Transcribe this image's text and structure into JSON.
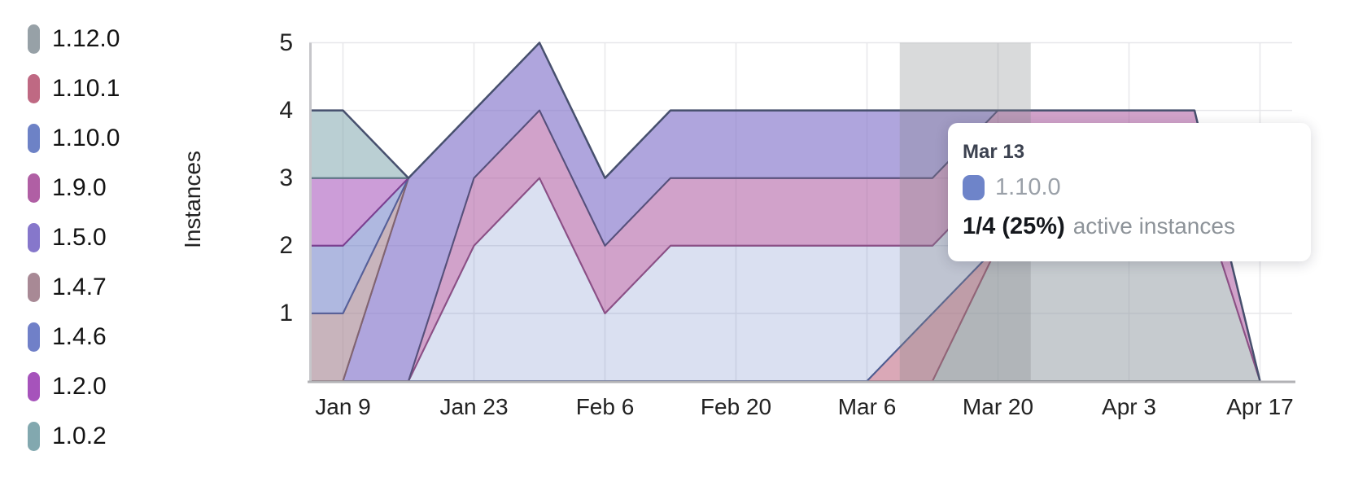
{
  "legend": {
    "items": [
      {
        "label": "1.12.0",
        "color": "#97a1a7"
      },
      {
        "label": "1.10.1",
        "color": "#bf6983"
      },
      {
        "label": "1.10.0",
        "color": "#6d82c6"
      },
      {
        "label": "1.9.0",
        "color": "#b05fa4"
      },
      {
        "label": "1.5.0",
        "color": "#8677cb"
      },
      {
        "label": "1.4.7",
        "color": "#a88995"
      },
      {
        "label": "1.4.6",
        "color": "#7080c8"
      },
      {
        "label": "1.2.0",
        "color": "#a653bb"
      },
      {
        "label": "1.0.2",
        "color": "#82a8af"
      }
    ]
  },
  "chart_data": {
    "type": "area",
    "stacked": true,
    "title": "",
    "xlabel": "",
    "ylabel": "Instances",
    "ylim": [
      0,
      5
    ],
    "y_ticks": [
      1,
      2,
      3,
      4,
      5
    ],
    "grid": true,
    "legend_position": "left",
    "x": [
      "Jan 2",
      "Jan 9",
      "Jan 16",
      "Jan 23",
      "Jan 30",
      "Feb 6",
      "Feb 13",
      "Feb 20",
      "Feb 27",
      "Mar 6",
      "Mar 13",
      "Mar 20",
      "Mar 27",
      "Apr 3",
      "Apr 10",
      "Apr 17"
    ],
    "x_tick_indices": [
      1,
      3,
      5,
      7,
      9,
      11,
      13,
      15
    ],
    "x_tick_labels": [
      "Jan 9",
      "Jan 23",
      "Feb 6",
      "Feb 20",
      "Mar 6",
      "Mar 20",
      "Apr 3",
      "Apr 17"
    ],
    "total_outline_color": "#47506e",
    "series": [
      {
        "name": "1.12.0",
        "color": "#97a1a7",
        "fill": "rgba(151,161,167,0.55)",
        "stroke": "#6e767d",
        "values": [
          0,
          0,
          0,
          0,
          0,
          0,
          0,
          0,
          0,
          0,
          0,
          2,
          3,
          3,
          3,
          0
        ]
      },
      {
        "name": "1.10.1",
        "color": "#bf6983",
        "fill": "rgba(191,105,131,0.58)",
        "stroke": "#9a5670",
        "values": [
          0,
          0,
          0,
          0,
          0,
          0,
          0,
          0,
          0,
          0,
          1,
          0,
          0,
          0,
          0,
          0
        ]
      },
      {
        "name": "1.10.0",
        "color": "#6d82c6",
        "fill": "rgba(109,130,198,0.25)",
        "stroke": "#4d5e93",
        "values": [
          0,
          0,
          0,
          2,
          3,
          1,
          2,
          2,
          2,
          2,
          1,
          1,
          0,
          0,
          0,
          0
        ]
      },
      {
        "name": "1.9.0",
        "color": "#b05fa4",
        "fill": "rgba(176,95,164,0.58)",
        "stroke": "#8d4f85",
        "values": [
          0,
          0,
          0,
          1,
          1,
          1,
          1,
          1,
          1,
          1,
          1,
          1,
          1,
          1,
          1,
          0
        ]
      },
      {
        "name": "1.5.0",
        "color": "#8677cb",
        "fill": "rgba(134,119,203,0.66)",
        "stroke": "#55517b",
        "values": [
          0,
          0,
          3,
          1,
          1,
          1,
          1,
          1,
          1,
          1,
          1,
          0,
          0,
          0,
          0,
          0
        ]
      },
      {
        "name": "1.4.7",
        "color": "#a88995",
        "fill": "rgba(168,137,149,0.63)",
        "stroke": "#826470",
        "values": [
          1,
          1,
          0,
          0,
          0,
          0,
          0,
          0,
          0,
          0,
          0,
          0,
          0,
          0,
          0,
          0
        ]
      },
      {
        "name": "1.4.6",
        "color": "#7080c8",
        "fill": "rgba(112,128,200,0.56)",
        "stroke": "#55609a",
        "values": [
          1,
          1,
          0,
          0,
          0,
          0,
          0,
          0,
          0,
          0,
          0,
          0,
          0,
          0,
          0,
          0
        ]
      },
      {
        "name": "1.2.0",
        "color": "#a653bb",
        "fill": "rgba(166,83,187,0.57)",
        "stroke": "#7c3f90",
        "values": [
          1,
          1,
          0,
          0,
          0,
          0,
          0,
          0,
          0,
          0,
          0,
          0,
          0,
          0,
          0,
          0
        ]
      },
      {
        "name": "1.0.2",
        "color": "#82a8af",
        "fill": "rgba(130,168,175,0.55)",
        "stroke": "#5c7b83",
        "values": [
          1,
          1,
          0,
          0,
          0,
          0,
          0,
          0,
          0,
          0,
          0,
          0,
          0,
          0,
          0,
          0
        ]
      }
    ]
  },
  "hover": {
    "start_index": 10,
    "end_index": 11,
    "start_date": "Mar 13",
    "end_date": "Mar 20"
  },
  "tooltip": {
    "date": "Mar 13",
    "series_name": "1.10.0",
    "swatch_color": "#6e84c9",
    "value_text": "1/4 (25%)",
    "value_suffix": "active instances"
  }
}
